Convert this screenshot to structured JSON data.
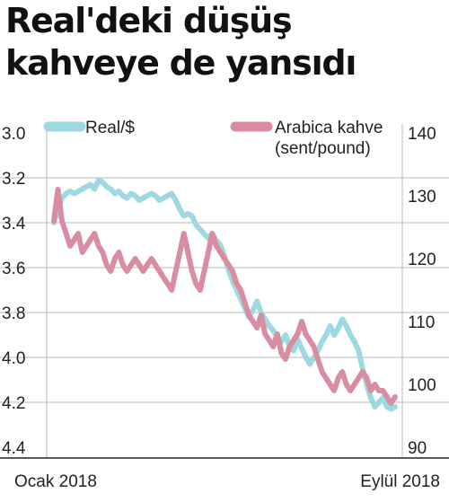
{
  "headline": {
    "line1": "Real'deki düşüş",
    "line2": "kahveye de yansıdı"
  },
  "colors": {
    "real": "#9ed8e0",
    "coffee": "#d88ea0",
    "grid": "#b8b8b8",
    "axis": "#222222"
  },
  "chart_data": {
    "type": "line",
    "x_start_label": "Ocak 2018",
    "x_end_label": "Eylül 2018",
    "left_axis": {
      "ticks": [
        "3.0",
        "3.2",
        "3.4",
        "3.6",
        "3.8",
        "4.0",
        "4.2",
        "4.4"
      ],
      "ylim": [
        4.4,
        3.0
      ],
      "inverted": true
    },
    "right_axis": {
      "ticks": [
        "140",
        "130",
        "120",
        "110",
        "100",
        "90"
      ],
      "ylim": [
        89,
        140
      ]
    },
    "grid": true,
    "legend_position": "top",
    "series": [
      {
        "name": "Real/$",
        "axis": "left",
        "color_key": "real",
        "values": [
          3.4,
          3.34,
          3.29,
          3.27,
          3.26,
          3.27,
          3.26,
          3.25,
          3.24,
          3.23,
          3.25,
          3.21,
          3.22,
          3.24,
          3.25,
          3.27,
          3.26,
          3.28,
          3.29,
          3.27,
          3.28,
          3.3,
          3.29,
          3.28,
          3.27,
          3.28,
          3.3,
          3.29,
          3.28,
          3.27,
          3.3,
          3.34,
          3.37,
          3.36,
          3.37,
          3.41,
          3.43,
          3.45,
          3.47,
          3.45,
          3.48,
          3.5,
          3.55,
          3.61,
          3.66,
          3.7,
          3.74,
          3.78,
          3.82,
          3.79,
          3.75,
          3.8,
          3.83,
          3.86,
          3.88,
          3.91,
          3.93,
          3.9,
          3.95,
          3.97,
          3.92,
          3.96,
          4.0,
          4.03,
          4.0,
          3.97,
          3.93,
          3.9,
          3.86,
          3.9,
          3.87,
          3.83,
          3.86,
          3.9,
          3.93,
          3.97,
          4.05,
          4.12,
          4.18,
          4.22,
          4.2,
          4.18,
          4.22,
          4.23,
          4.22
        ]
      },
      {
        "name": "Arabica kahve (sent/pound)",
        "axis": "right",
        "color_key": "coffee",
        "values": [
          126,
          131,
          126,
          124,
          122,
          123,
          124,
          121,
          122,
          123,
          124,
          122,
          121,
          119,
          118,
          120,
          121,
          119,
          118,
          119,
          120,
          119,
          118,
          119,
          120,
          119,
          118,
          117,
          116,
          115,
          118,
          121,
          124,
          121,
          118,
          116,
          115,
          118,
          121,
          124,
          122,
          121,
          120,
          119,
          118,
          116,
          115,
          113,
          111,
          110,
          109,
          111,
          108,
          107,
          106,
          108,
          105,
          104,
          106,
          107,
          108,
          110,
          108,
          107,
          106,
          104,
          102,
          101,
          100,
          99,
          101,
          102,
          100,
          99,
          100,
          101,
          102,
          101,
          99,
          100,
          99,
          99,
          98,
          97,
          98
        ]
      }
    ]
  }
}
